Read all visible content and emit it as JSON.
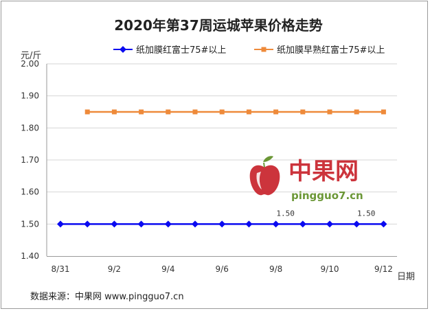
{
  "chart_data": {
    "type": "line",
    "title": "2020年第37周运城苹果价格走势",
    "ylabel": "元/斤",
    "xlabel": "日期",
    "ylim": [
      1.4,
      2.0
    ],
    "y_ticks": [
      "1.40",
      "1.50",
      "1.60",
      "1.70",
      "1.80",
      "1.90",
      "2.00"
    ],
    "x": [
      "8/31",
      "9/1",
      "9/2",
      "9/3",
      "9/4",
      "9/5",
      "9/6",
      "9/7",
      "9/8",
      "9/9",
      "9/10",
      "9/11",
      "9/12"
    ],
    "x_tick_labels": [
      "8/31",
      "9/2",
      "9/4",
      "9/6",
      "9/8",
      "9/10",
      "9/12"
    ],
    "grid": "horizontal",
    "legend_position": "top",
    "series": [
      {
        "name": "纸加膜红富士75#以上",
        "color": "#0a0af0",
        "marker": "diamond",
        "values": [
          1.5,
          1.5,
          1.5,
          1.5,
          1.5,
          1.5,
          1.5,
          1.5,
          1.5,
          1.5,
          1.5,
          1.5,
          1.5
        ],
        "data_labels": [
          {
            "x": "9/8",
            "text": "1.50"
          },
          {
            "x": "9/11",
            "text": "1.50"
          }
        ]
      },
      {
        "name": "纸加膜早熟红富士75#以上",
        "color": "#ee8a3a",
        "marker": "square",
        "values": [
          null,
          1.85,
          1.85,
          1.85,
          1.85,
          1.85,
          1.85,
          1.85,
          1.85,
          1.85,
          1.85,
          1.85,
          1.85
        ]
      }
    ]
  },
  "watermark": {
    "brand_cn": "中果网",
    "url": "pingguo7.cn"
  },
  "source_note": "数据来源：中果网 www.pingguo7.cn"
}
